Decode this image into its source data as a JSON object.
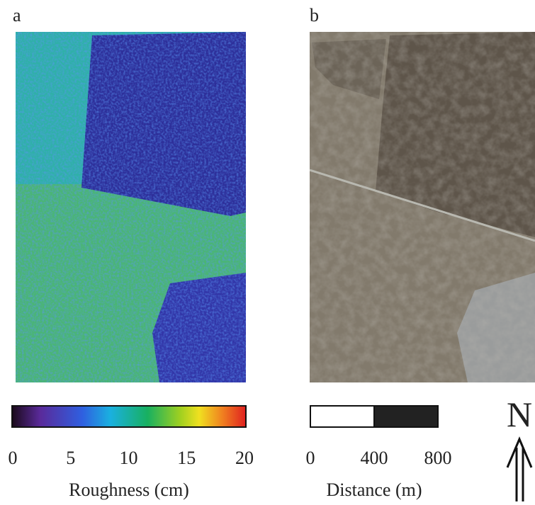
{
  "panels": [
    {
      "label": "a"
    },
    {
      "label": "b"
    }
  ],
  "colorbar": {
    "lim": [
      0,
      20
    ],
    "ticks": [
      0,
      5,
      10,
      15,
      20
    ],
    "label": "Roughness (cm)"
  },
  "scalebar": {
    "lim": [
      0,
      800
    ],
    "ticks": [
      0,
      400,
      800
    ],
    "label": "Distance (m)"
  },
  "north": "N"
}
